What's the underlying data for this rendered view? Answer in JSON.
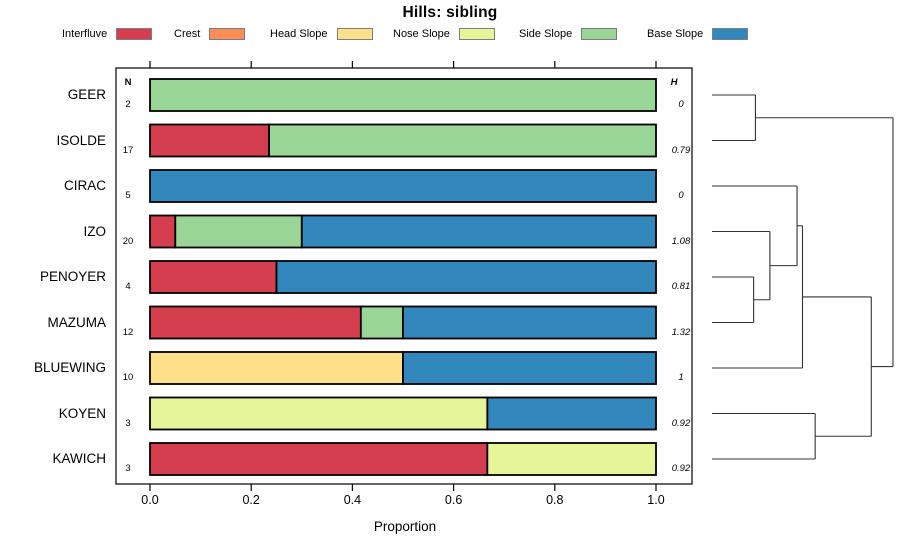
{
  "chart_data": {
    "type": "bar",
    "variant": "horizontal-stacked-proportion",
    "title": "Hills: sibling",
    "xlabel": "Proportion",
    "x_ticks": [
      "0.0",
      "0.2",
      "0.4",
      "0.6",
      "0.8",
      "1.0"
    ],
    "xlim": [
      0,
      1
    ],
    "n_header": "N",
    "h_header": "H",
    "legend": [
      {
        "label": "Interfluve",
        "color": "#D53E4F"
      },
      {
        "label": "Crest",
        "color": "#FC8D59"
      },
      {
        "label": "Head Slope",
        "color": "#FEE08B"
      },
      {
        "label": "Nose Slope",
        "color": "#E6F598"
      },
      {
        "label": "Side Slope",
        "color": "#99D594"
      },
      {
        "label": "Base Slope",
        "color": "#3288BD"
      }
    ],
    "rows": [
      {
        "label": "GEER",
        "n": "2",
        "h": "0",
        "segments": [
          {
            "category": "Side Slope",
            "value": 1.0
          }
        ]
      },
      {
        "label": "ISOLDE",
        "n": "17",
        "h": "0.79",
        "segments": [
          {
            "category": "Interfluve",
            "value": 0.2353
          },
          {
            "category": "Side Slope",
            "value": 0.7647
          }
        ]
      },
      {
        "label": "CIRAC",
        "n": "5",
        "h": "0",
        "segments": [
          {
            "category": "Base Slope",
            "value": 1.0
          }
        ]
      },
      {
        "label": "IZO",
        "n": "20",
        "h": "1.08",
        "segments": [
          {
            "category": "Interfluve",
            "value": 0.05
          },
          {
            "category": "Side Slope",
            "value": 0.25
          },
          {
            "category": "Base Slope",
            "value": 0.7
          }
        ]
      },
      {
        "label": "PENOYER",
        "n": "4",
        "h": "0.81",
        "segments": [
          {
            "category": "Interfluve",
            "value": 0.25
          },
          {
            "category": "Base Slope",
            "value": 0.75
          }
        ]
      },
      {
        "label": "MAZUMA",
        "n": "12",
        "h": "1.32",
        "segments": [
          {
            "category": "Interfluve",
            "value": 0.4167
          },
          {
            "category": "Side Slope",
            "value": 0.0833
          },
          {
            "category": "Base Slope",
            "value": 0.5
          }
        ]
      },
      {
        "label": "BLUEWING",
        "n": "10",
        "h": "1",
        "segments": [
          {
            "category": "Head Slope",
            "value": 0.5
          },
          {
            "category": "Base Slope",
            "value": 0.5
          }
        ]
      },
      {
        "label": "KOYEN",
        "n": "3",
        "h": "0.92",
        "segments": [
          {
            "category": "Nose Slope",
            "value": 0.6667
          },
          {
            "category": "Base Slope",
            "value": 0.3333
          }
        ]
      },
      {
        "label": "KAWICH",
        "n": "3",
        "h": "0.92",
        "segments": [
          {
            "category": "Interfluve",
            "value": 0.6667
          },
          {
            "category": "Nose Slope",
            "value": 0.3333
          }
        ]
      }
    ],
    "dendrogram": {
      "leaf_order": [
        "GEER",
        "ISOLDE",
        "CIRAC",
        "IZO",
        "PENOYER",
        "MAZUMA",
        "BLUEWING",
        "KOYEN",
        "KAWICH"
      ],
      "merges": [
        {
          "id": "m0",
          "children": [
            "PENOYER",
            "MAZUMA"
          ],
          "height": 0.23
        },
        {
          "id": "m1",
          "children": [
            "IZO",
            "m0"
          ],
          "height": 0.32
        },
        {
          "id": "m2",
          "children": [
            "CIRAC",
            "m1"
          ],
          "height": 0.47
        },
        {
          "id": "m3",
          "children": [
            "m2",
            "BLUEWING"
          ],
          "height": 0.5
        },
        {
          "id": "m4",
          "children": [
            "KOYEN",
            "KAWICH"
          ],
          "height": 0.57
        },
        {
          "id": "m5",
          "children": [
            "m3",
            "m4"
          ],
          "height": 0.88
        },
        {
          "id": "m6",
          "children": [
            "GEER",
            "ISOLDE"
          ],
          "height": 0.24
        },
        {
          "id": "m7",
          "children": [
            "m6",
            "m5"
          ],
          "height": 1.0
        }
      ]
    }
  }
}
